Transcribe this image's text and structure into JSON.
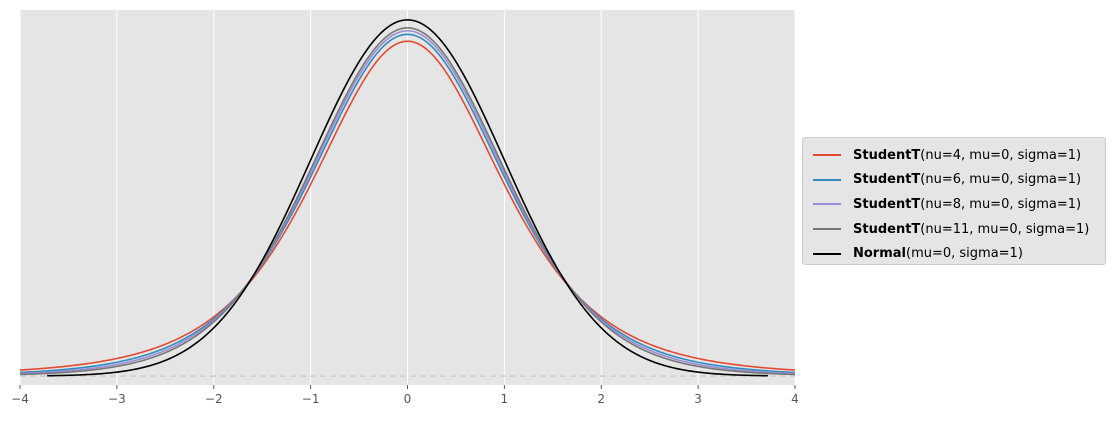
{
  "chart_data": {
    "type": "line",
    "title": "",
    "xlabel": "",
    "ylabel": "",
    "xlim": [
      -4,
      4
    ],
    "ylim": [
      -0.01,
      0.41
    ],
    "x_ticks": [
      -4,
      -3,
      -2,
      -1,
      0,
      1,
      2,
      3,
      4
    ],
    "x_tick_labels": [
      "−4",
      "−3",
      "−2",
      "−1",
      "0",
      "1",
      "2",
      "3",
      "4"
    ],
    "grid": true,
    "legend_placement": "center-right outside",
    "series": [
      {
        "dist": "studentt",
        "nu": 4,
        "mu": 0,
        "sigma": 1,
        "color": "#e24a33",
        "x_range": [
          -4,
          4
        ],
        "label_bold": "StudentT",
        "label_rest": "(nu=4, mu=0, sigma=1)"
      },
      {
        "dist": "studentt",
        "nu": 6,
        "mu": 0,
        "sigma": 1,
        "color": "#348abd",
        "x_range": [
          -4,
          4
        ],
        "label_bold": "StudentT",
        "label_rest": "(nu=6, mu=0, sigma=1)"
      },
      {
        "dist": "studentt",
        "nu": 8,
        "mu": 0,
        "sigma": 1,
        "color": "#988ed5",
        "x_range": [
          -4,
          4
        ],
        "label_bold": "StudentT",
        "label_rest": "(nu=8, mu=0, sigma=1)"
      },
      {
        "dist": "studentt",
        "nu": 11,
        "mu": 0,
        "sigma": 1,
        "color": "#777777",
        "x_range": [
          -4,
          4
        ],
        "label_bold": "StudentT",
        "label_rest": "(nu=11, mu=0, sigma=1)"
      },
      {
        "dist": "normal",
        "mu": 0,
        "sigma": 1,
        "color": "#000000",
        "x_range": [
          -3.72,
          3.72
        ],
        "label_bold": "Normal",
        "label_rest": "(mu=0, sigma=1)"
      }
    ],
    "baseline": {
      "y": 0,
      "style": "dashed",
      "color": "#cccccc"
    },
    "colors": {
      "axes_bg": "#e5e5e5",
      "grid": "#ffffff",
      "tick_text": "#555555"
    }
  }
}
